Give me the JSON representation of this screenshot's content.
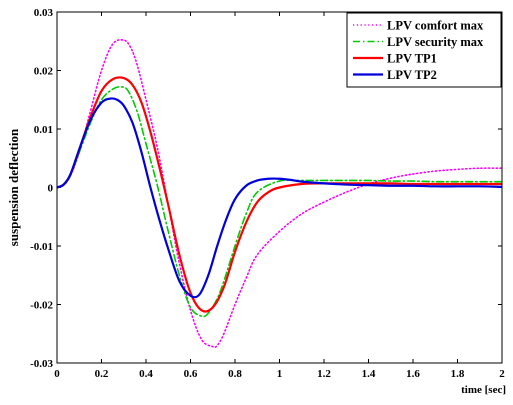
{
  "chart_data": {
    "type": "line",
    "title": "",
    "xlabel": "time [sec]",
    "ylabel": "suspension deflection",
    "xlim": [
      0,
      2
    ],
    "ylim": [
      -0.03,
      0.03
    ],
    "xticks": [
      0,
      0.2,
      0.4,
      0.6,
      0.8,
      1,
      1.2,
      1.4,
      1.6,
      1.8,
      2
    ],
    "xtick_labels": [
      "0",
      "0.2",
      "0.4",
      "0.6",
      "0.8",
      "1",
      "1.2",
      "1.4",
      "1.6",
      "1.8",
      "2"
    ],
    "yticks": [
      -0.03,
      -0.02,
      -0.01,
      0,
      0.01,
      0.02,
      0.03
    ],
    "ytick_labels": [
      "-0.03",
      "-0.02",
      "-0.01",
      "0",
      "0.01",
      "0.02",
      "0.03"
    ],
    "grid": false,
    "legend_position": "top-right",
    "series": [
      {
        "name": "LPV comfort max",
        "color": "#ff00ff",
        "style": "dotted",
        "x": [
          0,
          0.03,
          0.06,
          0.1,
          0.15,
          0.2,
          0.25,
          0.3,
          0.33,
          0.36,
          0.4,
          0.45,
          0.5,
          0.55,
          0.6,
          0.65,
          0.7,
          0.72,
          0.75,
          0.8,
          0.85,
          0.9,
          1.0,
          1.1,
          1.2,
          1.3,
          1.4,
          1.5,
          1.6,
          1.7,
          1.8,
          1.9,
          2.0
        ],
        "y": [
          0,
          0.0005,
          0.002,
          0.006,
          0.013,
          0.02,
          0.0245,
          0.0252,
          0.024,
          0.021,
          0.015,
          0.007,
          -0.003,
          -0.013,
          -0.021,
          -0.026,
          -0.0272,
          -0.027,
          -0.025,
          -0.02,
          -0.0155,
          -0.0115,
          -0.0075,
          -0.0045,
          -0.0025,
          -0.0008,
          0.0006,
          0.0016,
          0.0023,
          0.0028,
          0.0031,
          0.0033,
          0.0033
        ]
      },
      {
        "name": "LPV security max",
        "color": "#00cc00",
        "style": "dashdot",
        "x": [
          0,
          0.03,
          0.06,
          0.1,
          0.15,
          0.2,
          0.25,
          0.29,
          0.32,
          0.36,
          0.4,
          0.45,
          0.5,
          0.55,
          0.6,
          0.65,
          0.68,
          0.72,
          0.75,
          0.8,
          0.85,
          0.9,
          1.0,
          1.1,
          1.2,
          1.3,
          1.4,
          1.5,
          1.6,
          1.7,
          1.8,
          1.9,
          2.0
        ],
        "y": [
          0,
          0.0004,
          0.002,
          0.006,
          0.011,
          0.015,
          0.0168,
          0.0172,
          0.0165,
          0.013,
          0.0075,
          0.0005,
          -0.0075,
          -0.015,
          -0.0205,
          -0.022,
          -0.0215,
          -0.019,
          -0.016,
          -0.01,
          -0.0045,
          -0.0008,
          0.0011,
          0.0012,
          0.0012,
          0.0012,
          0.0012,
          0.0011,
          0.0011,
          0.001,
          0.001,
          0.001,
          0.001
        ]
      },
      {
        "name": "LPV TP1",
        "color": "#ff0000",
        "style": "solid",
        "x": [
          0,
          0.03,
          0.06,
          0.1,
          0.15,
          0.2,
          0.25,
          0.3,
          0.34,
          0.38,
          0.42,
          0.46,
          0.5,
          0.55,
          0.6,
          0.65,
          0.7,
          0.75,
          0.8,
          0.85,
          0.9,
          0.95,
          1.0,
          1.1,
          1.2,
          1.3,
          1.4,
          1.5,
          1.6,
          1.7,
          1.8,
          1.9,
          2.0
        ],
        "y": [
          0,
          0.0005,
          0.0022,
          0.0065,
          0.012,
          0.0165,
          0.0185,
          0.0187,
          0.0175,
          0.0145,
          0.0095,
          0.0035,
          -0.003,
          -0.0115,
          -0.018,
          -0.021,
          -0.0205,
          -0.017,
          -0.011,
          -0.006,
          -0.0025,
          -0.0008,
          0.0,
          0.0006,
          0.0007,
          0.0007,
          0.0007,
          0.0007,
          0.0006,
          0.0006,
          0.0006,
          0.0006,
          0.0006
        ]
      },
      {
        "name": "LPV TP2",
        "color": "#0000dd",
        "style": "solid",
        "x": [
          0,
          0.03,
          0.06,
          0.1,
          0.15,
          0.2,
          0.24,
          0.27,
          0.3,
          0.34,
          0.38,
          0.42,
          0.46,
          0.5,
          0.55,
          0.6,
          0.64,
          0.68,
          0.72,
          0.76,
          0.8,
          0.85,
          0.9,
          0.95,
          1.0,
          1.05,
          1.1,
          1.2,
          1.3,
          1.4,
          1.5,
          1.6,
          1.7,
          1.8,
          1.9,
          2.0
        ],
        "y": [
          0,
          0.0005,
          0.0022,
          0.0065,
          0.0115,
          0.0145,
          0.0152,
          0.015,
          0.014,
          0.011,
          0.006,
          0.0,
          -0.0055,
          -0.0105,
          -0.016,
          -0.0185,
          -0.0183,
          -0.015,
          -0.01,
          -0.0055,
          -0.002,
          0.0003,
          0.0012,
          0.0015,
          0.0015,
          0.0013,
          0.001,
          0.0007,
          0.0005,
          0.0004,
          0.0003,
          0.0003,
          0.0002,
          0.0002,
          0.0002,
          0.0001
        ]
      }
    ]
  }
}
